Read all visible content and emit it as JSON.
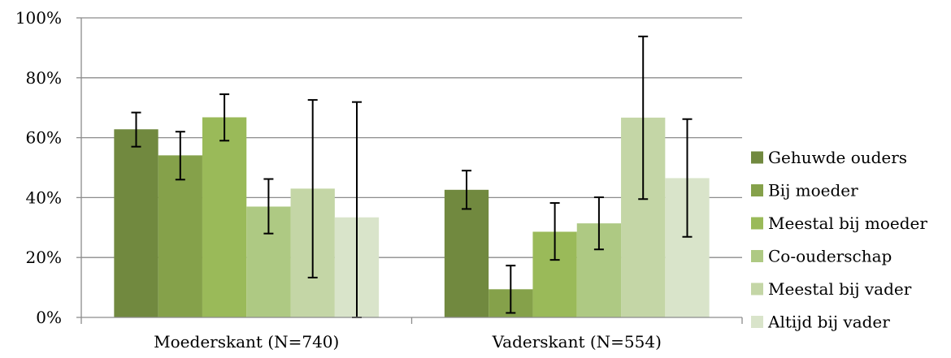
{
  "chart_data": {
    "type": "bar",
    "categories": [
      "Moederskant (N=740)",
      "Vaderskant (N=554)"
    ],
    "y_ticks": [
      "0%",
      "20%",
      "40%",
      "60%",
      "80%",
      "100%"
    ],
    "ylim": [
      0,
      100
    ],
    "grid": true,
    "legend_position": "right",
    "series": [
      {
        "name": "Gehuwde ouders",
        "color": "#71893f",
        "values": [
          62.8,
          42.6
        ],
        "error_low": [
          57.0,
          36.2
        ],
        "error_high": [
          68.4,
          49.0
        ]
      },
      {
        "name": "Bij moeder",
        "color": "#85a14a",
        "values": [
          54.1,
          9.4
        ],
        "error_low": [
          46.0,
          1.5
        ],
        "error_high": [
          62.0,
          17.3
        ]
      },
      {
        "name": "Meestal bij moeder",
        "color": "#9aba59",
        "values": [
          66.8,
          28.6
        ],
        "error_low": [
          59.0,
          19.2
        ],
        "error_high": [
          74.5,
          38.2
        ]
      },
      {
        "name": "Co-ouderschap",
        "color": "#aec983",
        "values": [
          37.0,
          31.4
        ],
        "error_low": [
          28.0,
          22.7
        ],
        "error_high": [
          46.2,
          40.1
        ]
      },
      {
        "name": "Meestal bij vader",
        "color": "#c4d6a6",
        "values": [
          43.0,
          66.7
        ],
        "error_low": [
          13.3,
          39.5
        ],
        "error_high": [
          72.6,
          93.8
        ]
      },
      {
        "name": "Altijd bij vader",
        "color": "#d9e4ca",
        "values": [
          33.4,
          46.5
        ],
        "error_low": [
          0.0,
          26.9
        ],
        "error_high": [
          71.9,
          66.2
        ]
      }
    ]
  }
}
